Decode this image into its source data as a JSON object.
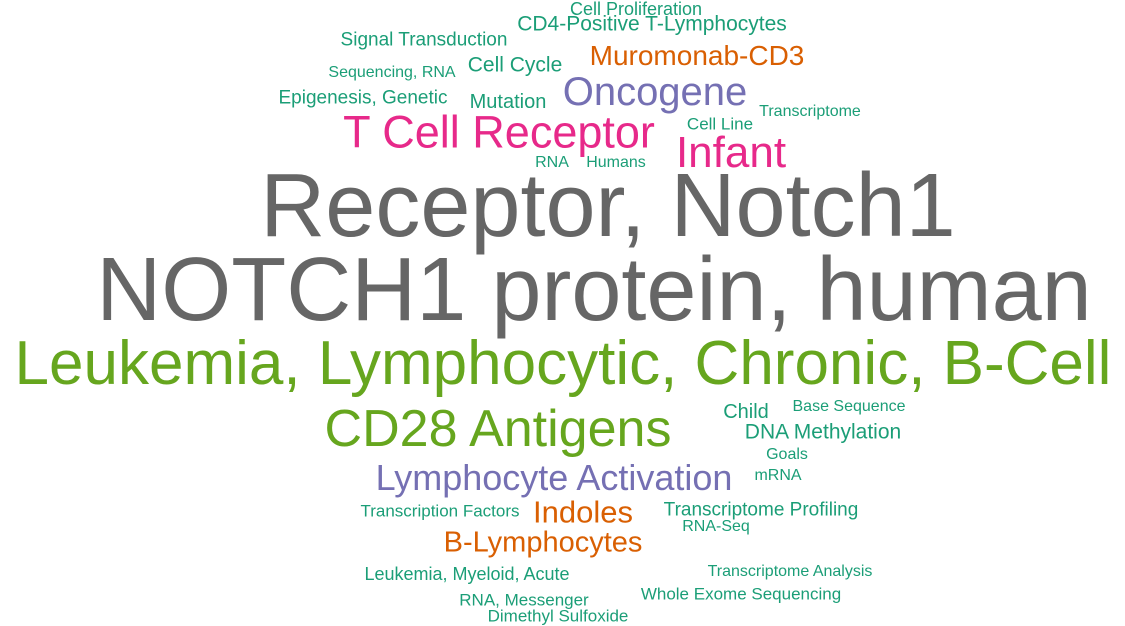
{
  "palette": {
    "gray": "#666666",
    "green": "#66a61e",
    "teal": "#1b9e77",
    "purple": "#7570b3",
    "pink": "#e7298a",
    "orange": "#d95f02"
  },
  "words": [
    {
      "text": "Cell Proliferation",
      "color": "#1b9e77"
    },
    {
      "text": "CD4-Positive T-Lymphocytes",
      "color": "#1b9e77"
    },
    {
      "text": "Signal Transduction",
      "color": "#1b9e77"
    },
    {
      "text": "Muromonab-CD3",
      "color": "#d95f02"
    },
    {
      "text": "Sequencing, RNA",
      "color": "#1b9e77"
    },
    {
      "text": "Cell Cycle",
      "color": "#1b9e77"
    },
    {
      "text": "Oncogene",
      "color": "#7570b3"
    },
    {
      "text": "Epigenesis, Genetic",
      "color": "#1b9e77"
    },
    {
      "text": "Mutation",
      "color": "#1b9e77"
    },
    {
      "text": "Transcriptome",
      "color": "#1b9e77"
    },
    {
      "text": "T Cell Receptor",
      "color": "#e7298a"
    },
    {
      "text": "Cell Line",
      "color": "#1b9e77"
    },
    {
      "text": "Infant",
      "color": "#e7298a"
    },
    {
      "text": "RNA",
      "color": "#1b9e77"
    },
    {
      "text": "Humans",
      "color": "#1b9e77"
    },
    {
      "text": "Receptor, Notch1",
      "color": "#666666"
    },
    {
      "text": "NOTCH1 protein, human",
      "color": "#666666"
    },
    {
      "text": "Leukemia, Lymphocytic, Chronic, B-Cell",
      "color": "#66a61e"
    },
    {
      "text": "CD28 Antigens",
      "color": "#66a61e"
    },
    {
      "text": "Child",
      "color": "#1b9e77"
    },
    {
      "text": "Base Sequence",
      "color": "#1b9e77"
    },
    {
      "text": "DNA Methylation",
      "color": "#1b9e77"
    },
    {
      "text": "Goals",
      "color": "#1b9e77"
    },
    {
      "text": "Lymphocyte Activation",
      "color": "#7570b3"
    },
    {
      "text": "mRNA",
      "color": "#1b9e77"
    },
    {
      "text": "Transcription Factors",
      "color": "#1b9e77"
    },
    {
      "text": "Indoles",
      "color": "#d95f02"
    },
    {
      "text": "Transcriptome Profiling",
      "color": "#1b9e77"
    },
    {
      "text": "RNA-Seq",
      "color": "#1b9e77"
    },
    {
      "text": "B-Lymphocytes",
      "color": "#d95f02"
    },
    {
      "text": "Leukemia, Myeloid, Acute",
      "color": "#1b9e77"
    },
    {
      "text": "Transcriptome Analysis",
      "color": "#1b9e77"
    },
    {
      "text": "RNA, Messenger",
      "color": "#1b9e77"
    },
    {
      "text": "Whole Exome Sequencing",
      "color": "#1b9e77"
    },
    {
      "text": "Dimethyl Sulfoxide",
      "color": "#1b9e77"
    }
  ]
}
